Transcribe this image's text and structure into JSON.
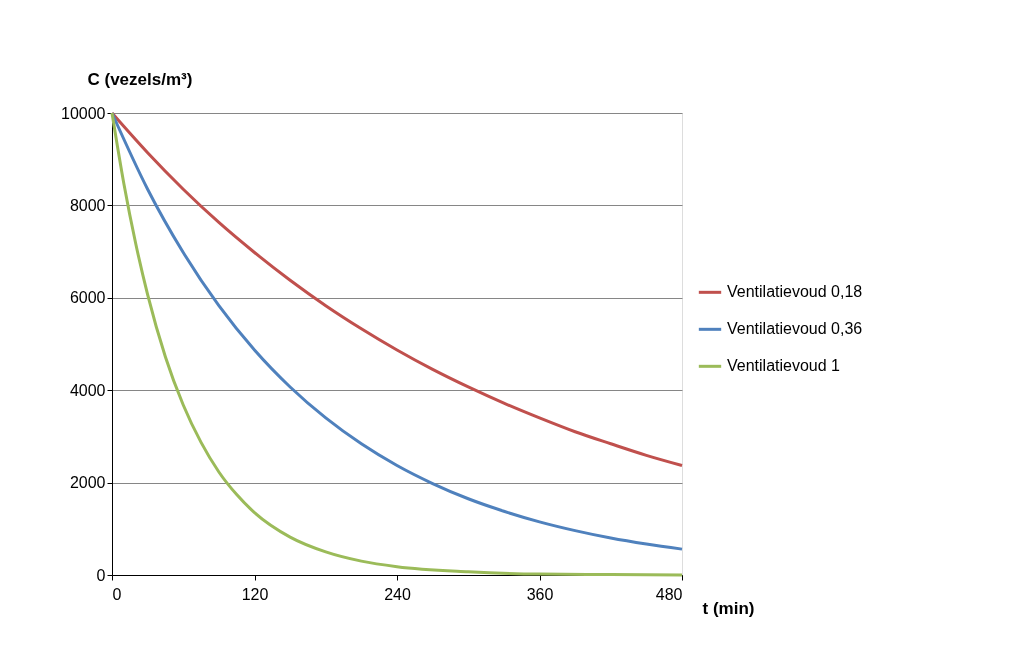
{
  "chart_data": {
    "type": "line",
    "ylabel": "C (vezels/m³)",
    "xlabel": "t (min)",
    "xlim": [
      0,
      480
    ],
    "xticks": [
      0,
      120,
      240,
      360,
      480
    ],
    "ylim": [
      0,
      10000
    ],
    "yticks": [
      0,
      2000,
      4000,
      6000,
      8000,
      10000
    ],
    "grid": "y",
    "legend": "right",
    "line_style": "solid",
    "marker": "none",
    "series": [
      {
        "name": "Ventilatievoud 0,18",
        "color": "#c0504d",
        "x": [
          0,
          30,
          60,
          90,
          120,
          150,
          180,
          210,
          240,
          270,
          300,
          330,
          360,
          390,
          420,
          450,
          480
        ],
        "values": [
          10000,
          9140,
          8350,
          7630,
          6980,
          6380,
          5830,
          5330,
          4870,
          4450,
          4070,
          3720,
          3400,
          3100,
          2840,
          2590,
          2370
        ]
      },
      {
        "name": "Ventilatievoud 0,36",
        "color": "#4f81bd",
        "x": [
          0,
          30,
          60,
          90,
          120,
          150,
          180,
          210,
          240,
          270,
          300,
          330,
          360,
          390,
          420,
          450,
          480
        ],
        "values": [
          10000,
          8350,
          6980,
          5830,
          4870,
          4070,
          3400,
          2840,
          2370,
          1980,
          1650,
          1380,
          1150,
          960,
          800,
          670,
          560
        ]
      },
      {
        "name": "Ventilatievoud 1",
        "color": "#9bbb59",
        "x": [
          0,
          10,
          20,
          30,
          45,
          60,
          75,
          90,
          105,
          120,
          150,
          180,
          210,
          240,
          300,
          360,
          420,
          480
        ],
        "values": [
          10000,
          8470,
          7170,
          6070,
          4720,
          3680,
          2870,
          2230,
          1740,
          1350,
          820,
          500,
          300,
          180,
          70,
          20,
          10,
          0
        ]
      }
    ]
  }
}
